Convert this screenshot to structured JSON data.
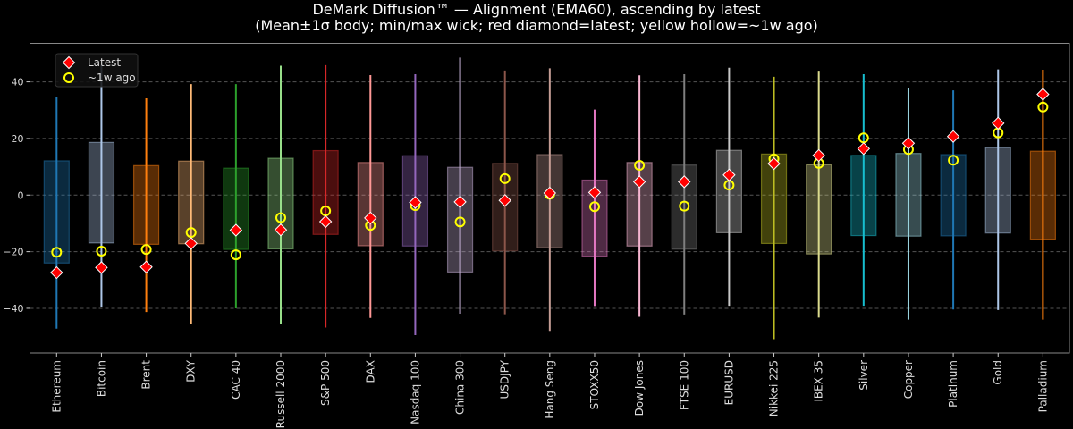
{
  "chart_data": {
    "type": "box-range",
    "title": "DeMark Diffusion™ — Alignment (EMA60), ascending by latest",
    "subtitle": "(Mean±1σ body; min/max wick; red diamond=latest; yellow hollow=~1w ago)",
    "xlabel": "",
    "ylabel": "",
    "ylim": [
      -55.8,
      53.6
    ],
    "yticks": [
      -40,
      -20,
      0,
      20,
      40
    ],
    "ytick_labels": [
      "−40",
      "−20",
      "0",
      "20",
      "40"
    ],
    "grid": "horizontal dashed",
    "legend": {
      "placement": "top-left",
      "entries": [
        {
          "label": "Latest",
          "marker": "red diamond",
          "color": "#ff0000"
        },
        {
          "label": "~1w ago",
          "marker": "yellow hollow circle",
          "color": "#ffff00"
        }
      ]
    },
    "categories": [
      "Ethereum",
      "Bitcoin",
      "Brent",
      "DXY",
      "CAC 40",
      "Russell 2000",
      "S&P 500",
      "DAX",
      "Nasdaq 100",
      "China 300",
      "USDJPY",
      "Hang Seng",
      "STOXX50",
      "Dow Jones",
      "FTSE 100",
      "EURUSD",
      "Nikkei 225",
      "IBEX 35",
      "Silver",
      "Copper",
      "Platinum",
      "Gold",
      "Palladium"
    ],
    "colors": [
      "#1f77b4",
      "#aec7e8",
      "#ff7f0e",
      "#ffbb78",
      "#2ca02c",
      "#98df8a",
      "#d62728",
      "#ff9896",
      "#9467bd",
      "#c5b0d5",
      "#8c564b",
      "#c49c94",
      "#e377c2",
      "#f7b6d2",
      "#7f7f7f",
      "#c7c7c7",
      "#bcbd22",
      "#dbdb8d",
      "#17becf",
      "#9edae5",
      "#1f77b4",
      "#aec7e8",
      "#ff7f0e"
    ],
    "body_high": [
      12.1,
      18.6,
      10.4,
      12.0,
      9.5,
      13.0,
      15.7,
      11.5,
      13.9,
      9.8,
      11.2,
      14.3,
      5.3,
      11.5,
      10.6,
      15.8,
      14.5,
      10.7,
      14.0,
      14.7,
      14.3,
      16.8,
      15.5
    ],
    "body_low": [
      -24.0,
      -16.9,
      -17.4,
      -17.2,
      -19.2,
      -19.0,
      -13.9,
      -17.9,
      -18.0,
      -27.2,
      -19.7,
      -18.6,
      -21.6,
      -18.0,
      -19.1,
      -13.3,
      -17.1,
      -20.8,
      -14.3,
      -14.5,
      -14.4,
      -13.4,
      -15.6
    ],
    "wick_max": [
      34.5,
      46.0,
      34.2,
      39.2,
      39.2,
      45.7,
      45.9,
      42.4,
      42.7,
      48.6,
      44.0,
      44.8,
      30.2,
      42.3,
      42.7,
      45.0,
      41.8,
      43.6,
      42.7,
      37.7,
      37.0,
      44.4,
      44.3
    ],
    "wick_min": [
      -47.2,
      -39.7,
      -41.3,
      -45.5,
      -40.0,
      -45.7,
      -46.8,
      -43.4,
      -49.5,
      -41.9,
      -42.1,
      -48.0,
      -39.2,
      -43.0,
      -42.2,
      -39.1,
      -50.9,
      -43.3,
      -39.1,
      -44.0,
      -40.4,
      -40.6,
      -44.0
    ],
    "latest": [
      -27.4,
      -25.6,
      -25.4,
      -17.1,
      -12.4,
      -12.3,
      -9.4,
      -8.1,
      -2.6,
      -2.4,
      -1.9,
      0.7,
      0.9,
      4.7,
      4.7,
      7.1,
      11.1,
      14.0,
      16.4,
      18.3,
      20.7,
      25.4,
      35.6
    ],
    "week_ago": [
      -20.2,
      -19.8,
      -19.2,
      -13.2,
      -21.1,
      -8.0,
      -5.6,
      -10.7,
      -3.7,
      -9.5,
      5.8,
      0.3,
      -4.1,
      10.5,
      -3.9,
      3.5,
      12.8,
      11.2,
      20.2,
      16.1,
      12.3,
      22.0,
      31.1
    ]
  }
}
